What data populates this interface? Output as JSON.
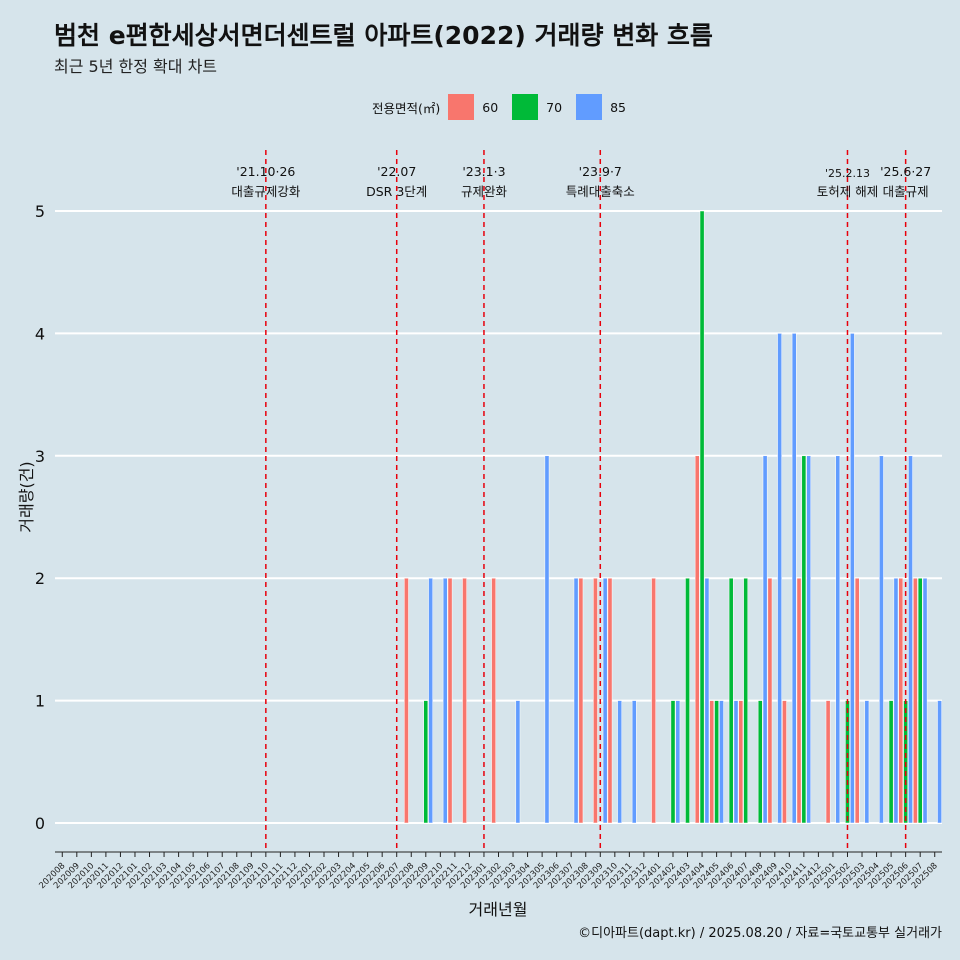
{
  "title": "범천 e편한세상서면더센트럴 아파트(2022) 거래량 변화 흐름",
  "subtitle": "최근 5년 한정 확대 차트",
  "legend": {
    "title": "전용면적(㎡)",
    "items": [
      {
        "label": "60",
        "color": "#f8766d"
      },
      {
        "label": "70",
        "color": "#00ba38"
      },
      {
        "label": "85",
        "color": "#619cff"
      }
    ]
  },
  "caption": "©디아파트(dapt.kr) / 2025.08.20 / 자료=국토교통부 실거래가",
  "chart_data": {
    "type": "bar",
    "title": "범천 e편한세상서면더센트럴 아파트(2022) 거래량 변화 흐름",
    "xlabel": "거래년월",
    "ylabel": "거래량(건)",
    "ylim": [
      0,
      5
    ],
    "yticks": [
      0,
      1,
      2,
      3,
      4,
      5
    ],
    "grid": true,
    "legend_position": "top",
    "categories": [
      "202008",
      "202009",
      "202010",
      "202011",
      "202012",
      "202101",
      "202102",
      "202103",
      "202104",
      "202105",
      "202106",
      "202107",
      "202108",
      "202109",
      "202110",
      "202111",
      "202112",
      "202201",
      "202202",
      "202203",
      "202204",
      "202205",
      "202206",
      "202207",
      "202208",
      "202209",
      "202210",
      "202211",
      "202212",
      "202301",
      "202302",
      "202303",
      "202304",
      "202305",
      "202306",
      "202307",
      "202308",
      "202309",
      "202310",
      "202311",
      "202312",
      "202401",
      "202402",
      "202403",
      "202404",
      "202405",
      "202406",
      "202407",
      "202408",
      "202409",
      "202410",
      "202411",
      "202412",
      "202501",
      "202502",
      "202503",
      "202504",
      "202505",
      "202506",
      "202507",
      "202508"
    ],
    "series": [
      {
        "name": "60",
        "color": "#f8766d",
        "values": [
          0,
          0,
          0,
          0,
          0,
          0,
          0,
          0,
          0,
          0,
          0,
          0,
          0,
          0,
          0,
          0,
          0,
          0,
          0,
          0,
          0,
          0,
          0,
          0,
          2,
          0,
          0,
          2,
          2,
          0,
          2,
          0,
          0,
          0,
          0,
          0,
          2,
          2,
          2,
          0,
          0,
          2,
          0,
          0,
          3,
          1,
          0,
          1,
          0,
          2,
          1,
          2,
          0,
          1,
          0,
          2,
          0,
          0,
          2,
          2,
          0
        ]
      },
      {
        "name": "70",
        "color": "#00ba38",
        "values": [
          0,
          0,
          0,
          0,
          0,
          0,
          0,
          0,
          0,
          0,
          0,
          0,
          0,
          0,
          0,
          0,
          0,
          0,
          0,
          0,
          0,
          0,
          0,
          0,
          0,
          1,
          0,
          0,
          0,
          0,
          0,
          0,
          0,
          0,
          0,
          0,
          0,
          0,
          0,
          0,
          0,
          0,
          1,
          2,
          5,
          1,
          2,
          2,
          1,
          0,
          0,
          3,
          0,
          0,
          1,
          0,
          0,
          1,
          1,
          2,
          0
        ]
      },
      {
        "name": "85",
        "color": "#619cff",
        "values": [
          0,
          0,
          0,
          0,
          0,
          0,
          0,
          0,
          0,
          0,
          0,
          0,
          0,
          0,
          0,
          0,
          0,
          0,
          0,
          0,
          0,
          0,
          0,
          0,
          0,
          2,
          2,
          0,
          0,
          0,
          0,
          1,
          0,
          3,
          0,
          2,
          0,
          2,
          1,
          1,
          0,
          0,
          1,
          0,
          2,
          1,
          1,
          0,
          3,
          4,
          4,
          3,
          0,
          3,
          4,
          1,
          3,
          2,
          3,
          2,
          1
        ]
      }
    ],
    "annotations": [
      {
        "x": "202110",
        "date": "'21.10·26",
        "text": "대출규제강화"
      },
      {
        "x": "202207",
        "date": "'22.07",
        "text": "DSR 3단계"
      },
      {
        "x": "202301",
        "date": "'23.1·3",
        "text": "규제완화"
      },
      {
        "x": "202309",
        "date": "'23.9·7",
        "text": "특례대출축소"
      },
      {
        "x": "202502",
        "date": "'25.2.13",
        "text": "토허제 해제"
      },
      {
        "x": "202506",
        "date": "'25.6·27",
        "text": "대출규제"
      }
    ]
  }
}
